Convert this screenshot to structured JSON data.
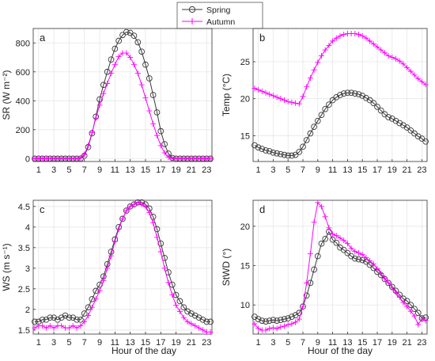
{
  "legend": [
    {
      "name": "Spring",
      "color": "#3a3a3a",
      "marker": "circle"
    },
    {
      "name": "Autumn",
      "color": "#ff00ff",
      "marker": "plus"
    }
  ],
  "xlabel": "Hour of the day",
  "chart_data": [
    {
      "type": "line",
      "panel": "a",
      "ylabel": "SR (W m⁻²)",
      "xlim": [
        0.3,
        23.7
      ],
      "ylim": [
        -20,
        900
      ],
      "yticks": [
        0,
        200,
        400,
        600,
        800
      ],
      "xticks": [
        1,
        3,
        5,
        7,
        9,
        11,
        13,
        15,
        17,
        19,
        21,
        23
      ],
      "grid": true,
      "series": [
        {
          "name": "Spring",
          "x": [
            0.5,
            1,
            1.5,
            2,
            2.5,
            3,
            3.5,
            4,
            4.5,
            5,
            5.5,
            6,
            6.5,
            7,
            7.5,
            8,
            8.5,
            9,
            9.5,
            10,
            10.5,
            11,
            11.5,
            12,
            12.5,
            13,
            13.5,
            14,
            14.5,
            15,
            15.5,
            16,
            16.5,
            17,
            17.5,
            18,
            18.5,
            19,
            19.5,
            20,
            20.5,
            21,
            21.5,
            22,
            22.5,
            23,
            23.5
          ],
          "y": [
            0,
            0,
            0,
            0,
            0,
            0,
            0,
            0,
            0,
            0,
            0,
            0,
            0,
            20,
            80,
            175,
            290,
            410,
            510,
            600,
            685,
            760,
            815,
            855,
            875,
            870,
            850,
            805,
            740,
            650,
            555,
            440,
            320,
            190,
            100,
            35,
            5,
            0,
            0,
            0,
            0,
            0,
            0,
            0,
            0,
            0,
            0
          ]
        },
        {
          "name": "Autumn",
          "x": [
            0.5,
            1,
            1.5,
            2,
            2.5,
            3,
            3.5,
            4,
            4.5,
            5,
            5.5,
            6,
            6.5,
            7,
            7.5,
            8,
            8.5,
            9,
            9.5,
            10,
            10.5,
            11,
            11.5,
            12,
            12.5,
            13,
            13.5,
            14,
            14.5,
            15,
            15.5,
            16,
            16.5,
            17,
            17.5,
            18,
            18.5,
            19,
            19.5,
            20,
            20.5,
            21,
            21.5,
            22,
            22.5,
            23,
            23.5
          ],
          "y": [
            0,
            0,
            0,
            0,
            0,
            0,
            0,
            0,
            0,
            0,
            0,
            0,
            5,
            30,
            90,
            180,
            280,
            370,
            450,
            520,
            590,
            650,
            705,
            730,
            730,
            700,
            650,
            590,
            510,
            420,
            330,
            240,
            160,
            90,
            40,
            10,
            0,
            0,
            0,
            0,
            0,
            0,
            0,
            0,
            0,
            0,
            0
          ]
        }
      ]
    },
    {
      "type": "line",
      "panel": "b",
      "ylabel": "Temp (°C)",
      "xlim": [
        0.3,
        23.7
      ],
      "ylim": [
        11.5,
        29.5
      ],
      "yticks": [
        15,
        20,
        25
      ],
      "xticks": [
        1,
        3,
        5,
        7,
        9,
        11,
        13,
        15,
        17,
        19,
        21,
        23
      ],
      "grid": true,
      "series": [
        {
          "name": "Spring",
          "x": [
            0.5,
            1,
            1.5,
            2,
            2.5,
            3,
            3.5,
            4,
            4.5,
            5,
            5.5,
            6,
            6.5,
            7,
            7.5,
            8,
            8.5,
            9,
            9.5,
            10,
            10.5,
            11,
            11.5,
            12,
            12.5,
            13,
            13.5,
            14,
            14.5,
            15,
            15.5,
            16,
            16.5,
            17,
            17.5,
            18,
            18.5,
            19,
            19.5,
            20,
            20.5,
            21,
            21.5,
            22,
            22.5,
            23,
            23.5
          ],
          "y": [
            13.7,
            13.4,
            13.2,
            13.0,
            12.9,
            12.7,
            12.6,
            12.5,
            12.4,
            12.3,
            12.3,
            12.4,
            12.8,
            13.5,
            14.4,
            15.3,
            16.2,
            17.0,
            17.8,
            18.6,
            19.2,
            19.8,
            20.2,
            20.5,
            20.7,
            20.8,
            20.8,
            20.7,
            20.6,
            20.4,
            20.1,
            19.8,
            19.4,
            18.9,
            18.4,
            17.9,
            17.5,
            17.3,
            17.0,
            16.7,
            16.4,
            16.1,
            15.7,
            15.3,
            14.9,
            14.6,
            14.2
          ]
        },
        {
          "name": "Autumn",
          "x": [
            0.5,
            1,
            1.5,
            2,
            2.5,
            3,
            3.5,
            4,
            4.5,
            5,
            5.5,
            6,
            6.5,
            7,
            7.5,
            8,
            8.5,
            9,
            9.5,
            10,
            10.5,
            11,
            11.5,
            12,
            12.5,
            13,
            13.5,
            14,
            14.5,
            15,
            15.5,
            16,
            16.5,
            17,
            17.5,
            18,
            18.5,
            19,
            19.5,
            20,
            20.5,
            21,
            21.5,
            22,
            22.5,
            23,
            23.5
          ],
          "y": [
            21.4,
            21.2,
            21.0,
            20.8,
            20.6,
            20.4,
            20.2,
            20.0,
            19.8,
            19.6,
            19.5,
            19.4,
            19.3,
            20.3,
            21.6,
            22.8,
            23.9,
            24.9,
            25.8,
            26.6,
            27.2,
            27.8,
            28.2,
            28.5,
            28.7,
            28.8,
            28.8,
            28.8,
            28.7,
            28.5,
            28.2,
            27.8,
            27.4,
            27.0,
            26.6,
            26.2,
            25.8,
            25.6,
            25.4,
            25.1,
            24.7,
            24.2,
            23.7,
            23.2,
            22.7,
            22.3,
            21.9
          ]
        }
      ]
    },
    {
      "type": "line",
      "panel": "c",
      "ylabel": "WS (m s⁻¹)",
      "xlim": [
        0.3,
        23.7
      ],
      "ylim": [
        1.4,
        4.65
      ],
      "yticks": [
        1.5,
        2,
        2.5,
        3,
        3.5,
        4,
        4.5
      ],
      "xticks": [
        1,
        3,
        5,
        7,
        9,
        11,
        13,
        15,
        17,
        19,
        21,
        23
      ],
      "grid": true,
      "series": [
        {
          "name": "Spring",
          "x": [
            0.5,
            1,
            1.5,
            2,
            2.5,
            3,
            3.5,
            4,
            4.5,
            5,
            5.5,
            6,
            6.5,
            7,
            7.5,
            8,
            8.5,
            9,
            9.5,
            10,
            10.5,
            11,
            11.5,
            12,
            12.5,
            13,
            13.5,
            14,
            14.5,
            15,
            15.5,
            16,
            16.5,
            17,
            17.5,
            18,
            18.5,
            19,
            19.5,
            20,
            20.5,
            21,
            21.5,
            22,
            22.5,
            23,
            23.5
          ],
          "y": [
            1.7,
            1.7,
            1.75,
            1.75,
            1.8,
            1.8,
            1.75,
            1.8,
            1.85,
            1.8,
            1.8,
            1.75,
            1.75,
            1.9,
            2.05,
            2.25,
            2.45,
            2.6,
            2.8,
            3.1,
            3.4,
            3.7,
            4.0,
            4.2,
            4.4,
            4.5,
            4.55,
            4.6,
            4.6,
            4.55,
            4.45,
            4.25,
            3.95,
            3.6,
            3.25,
            2.9,
            2.6,
            2.35,
            2.2,
            2.05,
            1.95,
            1.9,
            1.85,
            1.8,
            1.75,
            1.7,
            1.7
          ]
        },
        {
          "name": "Autumn",
          "x": [
            0.5,
            1,
            1.5,
            2,
            2.5,
            3,
            3.5,
            4,
            4.5,
            5,
            5.5,
            6,
            6.5,
            7,
            7.5,
            8,
            8.5,
            9,
            9.5,
            10,
            10.5,
            11,
            11.5,
            12,
            12.5,
            13,
            13.5,
            14,
            14.5,
            15,
            15.5,
            16,
            16.5,
            17,
            17.5,
            18,
            18.5,
            19,
            19.5,
            20,
            20.5,
            21,
            21.5,
            22,
            22.5,
            23,
            23.5
          ],
          "y": [
            1.55,
            1.6,
            1.6,
            1.55,
            1.6,
            1.55,
            1.6,
            1.6,
            1.55,
            1.55,
            1.6,
            1.55,
            1.6,
            1.7,
            1.85,
            2.05,
            2.25,
            2.45,
            2.7,
            3.0,
            3.3,
            3.65,
            3.95,
            4.2,
            4.4,
            4.5,
            4.55,
            4.6,
            4.55,
            4.5,
            4.35,
            4.1,
            3.75,
            3.4,
            3.0,
            2.65,
            2.35,
            2.1,
            1.95,
            1.8,
            1.7,
            1.65,
            1.6,
            1.55,
            1.5,
            1.45,
            1.45
          ]
        }
      ]
    },
    {
      "type": "line",
      "panel": "d",
      "ylabel": "StWD (°)",
      "xlim": [
        0.3,
        23.7
      ],
      "ylim": [
        6.3,
        23.3
      ],
      "yticks": [
        10,
        15,
        20
      ],
      "xticks": [
        1,
        3,
        5,
        7,
        9,
        11,
        13,
        15,
        17,
        19,
        21,
        23
      ],
      "grid": true,
      "series": [
        {
          "name": "Spring",
          "x": [
            0.5,
            1,
            1.5,
            2,
            2.5,
            3,
            3.5,
            4,
            4.5,
            5,
            5.5,
            6,
            6.5,
            7,
            7.5,
            8,
            8.5,
            9,
            9.5,
            10,
            10.5,
            11,
            11.5,
            12,
            12.5,
            13,
            13.5,
            14,
            14.5,
            15,
            15.5,
            16,
            16.5,
            17,
            17.5,
            18,
            18.5,
            19,
            19.5,
            20,
            20.5,
            21,
            21.5,
            22,
            22.5,
            23,
            23.5
          ],
          "y": [
            8.5,
            8.2,
            8.0,
            7.9,
            8.0,
            8.1,
            8.0,
            8.1,
            8.2,
            8.3,
            8.5,
            8.7,
            9.0,
            9.8,
            11.2,
            12.8,
            14.5,
            16.2,
            17.8,
            18.4,
            19.3,
            18.3,
            17.9,
            17.3,
            17.0,
            16.6,
            16.2,
            15.9,
            15.8,
            15.7,
            15.5,
            15.1,
            14.7,
            14.2,
            13.8,
            13.3,
            12.8,
            12.3,
            11.8,
            11.3,
            10.8,
            10.5,
            10.0,
            9.5,
            9.0,
            8.3,
            8.4
          ]
        },
        {
          "name": "Autumn",
          "x": [
            0.5,
            1,
            1.5,
            2,
            2.5,
            3,
            3.5,
            4,
            4.5,
            5,
            5.5,
            6,
            6.5,
            7,
            7.5,
            8,
            8.5,
            9,
            9.5,
            10,
            10.5,
            11,
            11.5,
            12,
            12.5,
            13,
            13.5,
            14,
            14.5,
            15,
            15.5,
            16,
            16.5,
            17,
            17.5,
            18,
            18.5,
            19,
            19.5,
            20,
            20.5,
            21,
            21.5,
            22,
            22.5,
            23,
            23.5
          ],
          "y": [
            7.6,
            7.0,
            6.8,
            6.8,
            7.0,
            7.1,
            7.0,
            7.2,
            7.3,
            7.5,
            7.6,
            7.8,
            8.2,
            9.8,
            12.8,
            16.5,
            20.5,
            23.0,
            22.5,
            21.2,
            19.8,
            19.0,
            18.8,
            18.5,
            18.2,
            17.8,
            17.2,
            16.8,
            16.6,
            16.4,
            16.0,
            15.6,
            15.2,
            14.6,
            14.0,
            13.4,
            12.8,
            12.2,
            11.6,
            11.0,
            10.3,
            9.8,
            9.2,
            8.6,
            7.5,
            8.2,
            8.0
          ]
        }
      ]
    }
  ]
}
